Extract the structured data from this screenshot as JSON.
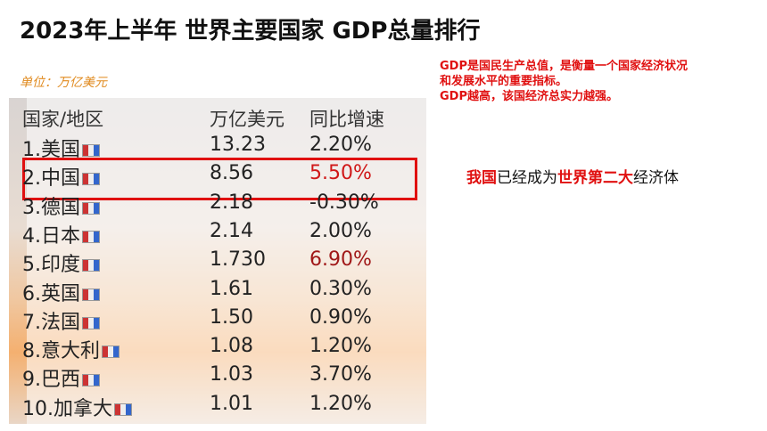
{
  "header": {
    "title": "2023年上半年 世界主要国家 GDP总量排行",
    "unit": "单位：万亿美元"
  },
  "notes": [
    "GDP是国民生产总值，是衡量一个国家经济状况",
    "和发展水平的重要指标。",
    "GDP越高，该国经济总实力越强。"
  ],
  "conclusion": [
    "我国",
    "已经成为",
    "世界第二大",
    "经济体"
  ],
  "table": {
    "columns": [
      "国家/地区",
      "万亿美元",
      "同比增速"
    ],
    "rows": [
      [
        "1.美国",
        "13.23",
        "2.20%"
      ],
      [
        "2.中国",
        "8.56",
        "5.50%"
      ],
      [
        "3.德国",
        "2.18",
        "-0.30%"
      ],
      [
        "4.日本",
        "2.14",
        "2.00%"
      ],
      [
        "5.印度",
        "1.730",
        "6.90%"
      ],
      [
        "6.英国",
        "1.61",
        "0.30%"
      ],
      [
        "7.法国",
        "1.50",
        "0.90%"
      ],
      [
        "8.意大利",
        "1.08",
        "1.20%"
      ],
      [
        "9.巴西",
        "1.03",
        "3.70%"
      ],
      [
        "10.加拿大",
        "1.01",
        "1.20%"
      ]
    ]
  }
}
